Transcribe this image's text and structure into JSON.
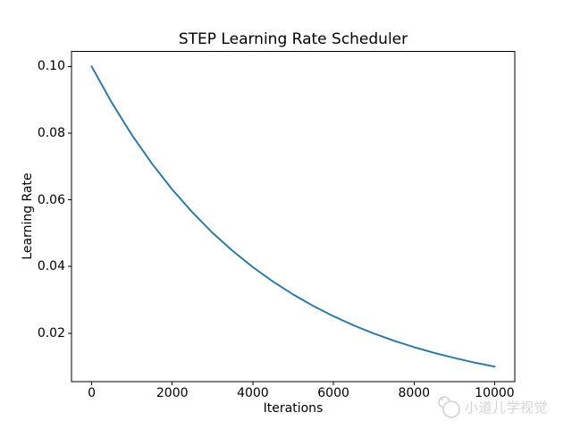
{
  "figure": {
    "background": "#ffffff"
  },
  "chart_data": {
    "type": "line",
    "title": "STEP Learning Rate Scheduler",
    "xlabel": "Iterations",
    "ylabel": "Learning Rate",
    "x_ticks": [
      0,
      2000,
      4000,
      6000,
      8000,
      10000
    ],
    "x_tick_labels": [
      "0",
      "2000",
      "4000",
      "6000",
      "8000",
      "10000"
    ],
    "y_ticks": [
      0.1,
      0.08,
      0.06,
      0.04,
      0.02
    ],
    "y_tick_labels": [
      "0.10",
      "0.08",
      "0.06",
      "0.04",
      "0.02"
    ],
    "xlim": [
      -500,
      10500
    ],
    "ylim": [
      0.0055,
      0.1045
    ],
    "grid": false,
    "legend": null,
    "line_color": "#1f77b4",
    "axis_color": "#000000",
    "series": [
      {
        "name": "learning_rate",
        "x": [
          0,
          500,
          1000,
          1500,
          2000,
          2500,
          3000,
          3500,
          4000,
          4500,
          5000,
          5500,
          6000,
          6500,
          7000,
          7500,
          8000,
          8500,
          9000,
          9500,
          10000
        ],
        "y": [
          0.1,
          0.089125,
          0.079433,
          0.070795,
          0.063096,
          0.056234,
          0.050119,
          0.044668,
          0.039811,
          0.035481,
          0.031623,
          0.028184,
          0.025119,
          0.022387,
          0.019953,
          0.017783,
          0.015849,
          0.014125,
          0.012589,
          0.01122,
          0.01
        ]
      }
    ]
  },
  "watermark": {
    "text": "小道儿学视觉",
    "color": "#d4d4d4"
  }
}
